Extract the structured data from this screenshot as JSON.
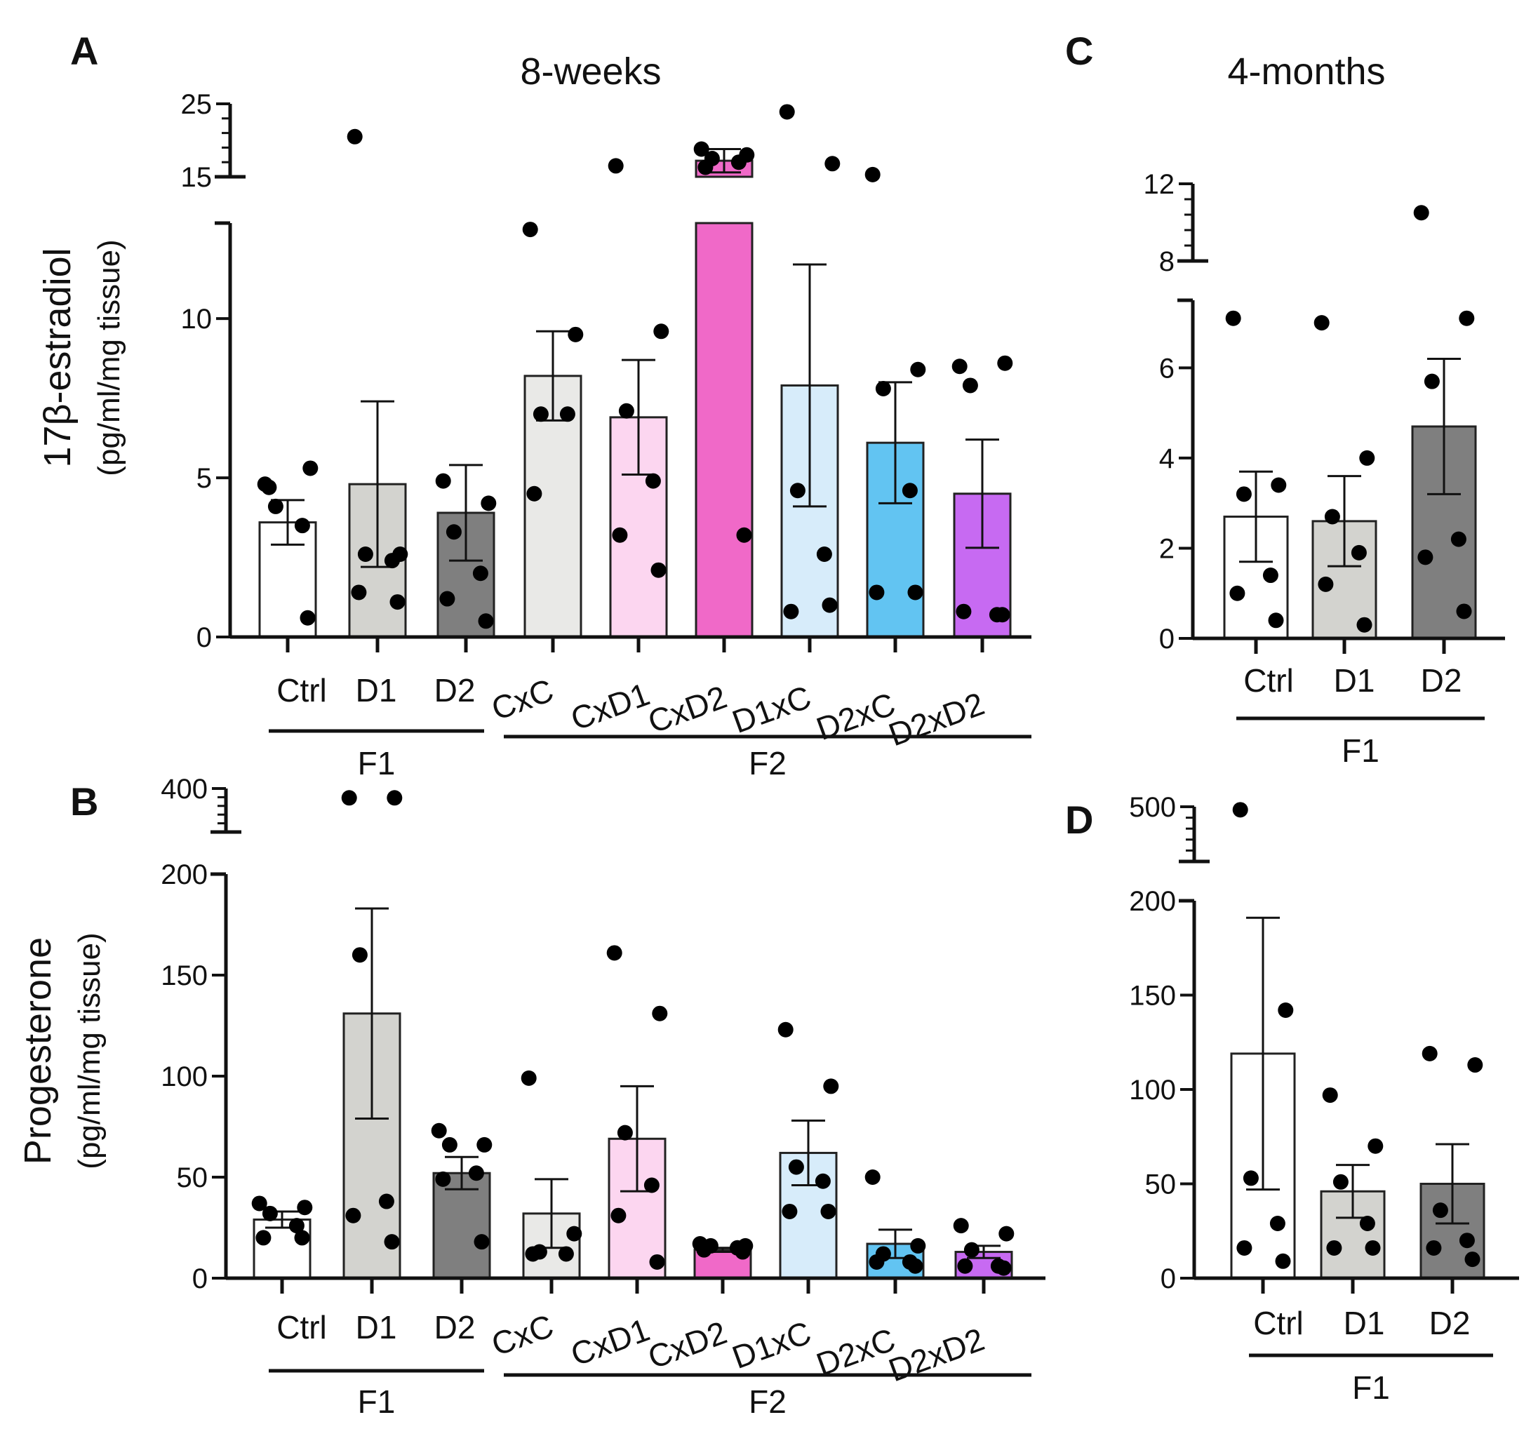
{
  "colors": {
    "axis": "#111111",
    "point": "#000000",
    "Ctrl": "#ffffff",
    "D1": "#d3d3cf",
    "D2": "#7f7f7f",
    "CxC": "#e9e9e7",
    "CxD1": "#fcd6f0",
    "CxD2": "#f069c8",
    "D1xC": "#d7ecfa",
    "D2xC": "#62c4f2",
    "D2xD2": "#c76af2"
  },
  "chart_data": [
    {
      "panel": "A",
      "title": "8-weeks",
      "type": "bar",
      "ylabel": "17β-estradiol",
      "yunit": "(pg/ml/mg tissue)",
      "ylim": [
        0,
        25
      ],
      "y_break": [
        13,
        15
      ],
      "y_ticks": [
        0,
        5,
        10,
        15,
        25
      ],
      "categories": [
        "Ctrl",
        "D1",
        "D2",
        "CxC",
        "CxD1",
        "CxD2",
        "D1xC",
        "D2xC",
        "D2xD2"
      ],
      "groups": [
        {
          "label": "F1",
          "categories": [
            "Ctrl",
            "D1",
            "D2"
          ]
        },
        {
          "label": "F2",
          "categories": [
            "CxC",
            "CxD1",
            "CxD2",
            "D1xC",
            "D2xC",
            "D2xD2"
          ]
        }
      ],
      "means": [
        3.6,
        4.8,
        3.9,
        8.2,
        6.9,
        17.2,
        7.9,
        6.1,
        4.5
      ],
      "sem": [
        0.7,
        2.6,
        1.5,
        1.4,
        1.8,
        1.6,
        3.8,
        1.9,
        1.7
      ],
      "points": [
        [
          4.8,
          5.3,
          4.1,
          3.5,
          4.7,
          0.6
        ],
        [
          20.5,
          2.6,
          2.6,
          2.4,
          1.4,
          1.1
        ],
        [
          4.9,
          4.2,
          3.3,
          2.0,
          1.2,
          0.5
        ],
        [
          12.8,
          9.5,
          7.0,
          7.0,
          4.5
        ],
        [
          16.5,
          9.6,
          7.1,
          4.9,
          3.2,
          2.1
        ],
        [
          18.8,
          18.0,
          17.5,
          17.0,
          16.3,
          3.2
        ],
        [
          23.9,
          16.8,
          4.6,
          2.6,
          0.8,
          1.0
        ],
        [
          15.3,
          8.4,
          7.8,
          4.6,
          1.4,
          1.4
        ],
        [
          8.5,
          8.6,
          7.9,
          0.7,
          0.8,
          0.7
        ]
      ]
    },
    {
      "panel": "B",
      "title": "",
      "type": "bar",
      "ylabel": "Progesterone",
      "yunit": "(pg/ml/mg tissue)",
      "ylim": [
        0,
        400
      ],
      "y_break": [
        200,
        260
      ],
      "y_ticks": [
        0,
        50,
        100,
        150,
        200,
        400
      ],
      "categories": [
        "Ctrl",
        "D1",
        "D2",
        "CxC",
        "CxD1",
        "CxD2",
        "D1xC",
        "D2xC",
        "D2xD2"
      ],
      "groups": [
        {
          "label": "F1",
          "categories": [
            "Ctrl",
            "D1",
            "D2"
          ]
        },
        {
          "label": "F2",
          "categories": [
            "CxC",
            "CxD1",
            "CxD2",
            "D1xC",
            "D2xC",
            "D2xD2"
          ]
        }
      ],
      "means": [
        29,
        131,
        52,
        32,
        69,
        14,
        62,
        17,
        13
      ],
      "sem": [
        4,
        52,
        8,
        17,
        26,
        1,
        16,
        7,
        3
      ],
      "points": [
        [
          37,
          35,
          32,
          26,
          20,
          20
        ],
        [
          370,
          370,
          160,
          38,
          31,
          18
        ],
        [
          73,
          66,
          66,
          52,
          49,
          18
        ],
        [
          99,
          22,
          13,
          12,
          12
        ],
        [
          161,
          131,
          72,
          46,
          31,
          8
        ],
        [
          17,
          16,
          16,
          15,
          14,
          13
        ],
        [
          123,
          95,
          55,
          48,
          33,
          33
        ],
        [
          50,
          16,
          12,
          8,
          8,
          6
        ],
        [
          26,
          22,
          14,
          6,
          6,
          5
        ]
      ]
    },
    {
      "panel": "C",
      "title": "4-months",
      "type": "bar",
      "ylabel": "",
      "yunit": "",
      "ylim": [
        0,
        12
      ],
      "y_break": [
        7.5,
        8
      ],
      "y_ticks": [
        0,
        2,
        4,
        6,
        8,
        12
      ],
      "categories": [
        "Ctrl",
        "D1",
        "D2"
      ],
      "groups": [
        {
          "label": "F1",
          "categories": [
            "Ctrl",
            "D1",
            "D2"
          ]
        }
      ],
      "means": [
        2.7,
        2.6,
        4.7
      ],
      "sem": [
        1.0,
        1.0,
        1.5
      ],
      "points": [
        [
          7.1,
          3.4,
          3.2,
          1.4,
          1.0,
          0.4
        ],
        [
          7.0,
          4.0,
          2.7,
          1.9,
          1.2,
          0.3
        ],
        [
          10.5,
          7.1,
          5.7,
          2.2,
          1.8,
          0.6
        ]
      ]
    },
    {
      "panel": "D",
      "title": "",
      "type": "bar",
      "ylabel": "",
      "yunit": "",
      "ylim": [
        0,
        500
      ],
      "y_break": [
        200,
        320
      ],
      "y_ticks": [
        0,
        50,
        100,
        150,
        200,
        500
      ],
      "categories": [
        "Ctrl",
        "D1",
        "D2"
      ],
      "groups": [
        {
          "label": "F1",
          "categories": [
            "Ctrl",
            "D1",
            "D2"
          ]
        }
      ],
      "means": [
        119,
        46,
        50
      ],
      "sem": [
        72,
        14,
        21
      ],
      "points": [
        [
          490,
          142,
          53,
          29,
          16,
          9
        ],
        [
          97,
          70,
          51,
          29,
          16,
          16
        ],
        [
          119,
          113,
          36,
          20,
          16,
          10
        ]
      ]
    }
  ]
}
